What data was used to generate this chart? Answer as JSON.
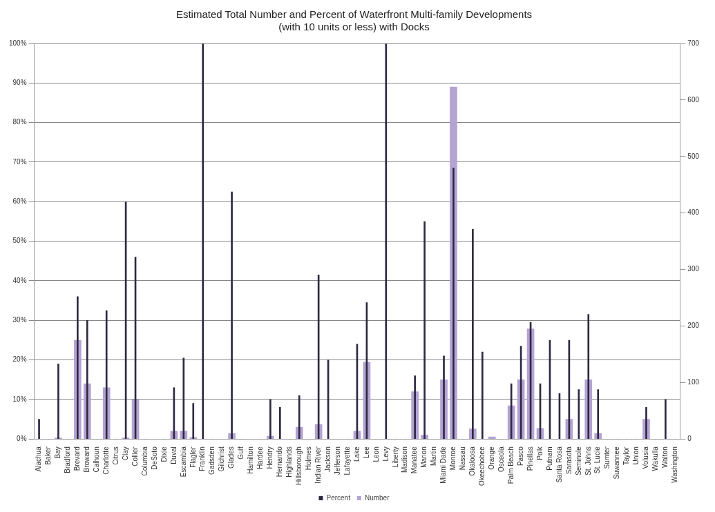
{
  "chart_data": {
    "type": "bar",
    "title": "Estimated Total Number and Percent of Waterfront Multi-family Developments\n(with 10 units or less) with Docks",
    "categories": [
      "Alachua",
      "Baker",
      "Bay",
      "Bradford",
      "Brevard",
      "Broward",
      "Calhoun",
      "Charlotte",
      "Citrus",
      "Clay",
      "Collier",
      "Columbia",
      "DeSoto",
      "Dixie",
      "Duval",
      "Escambia",
      "Flagler",
      "Franklin",
      "Gadsden",
      "Gilchrist",
      "Glades",
      "Gulf",
      "Hamilton",
      "Hardee",
      "Hendry",
      "Hernando",
      "Highlands",
      "Hillsborough",
      "Holmes",
      "Indian River",
      "Jackson",
      "Jefferson",
      "Lafayette",
      "Lake",
      "Lee",
      "Leon",
      "Levy",
      "Liberty",
      "Madison",
      "Manatee",
      "Marion",
      "Martin",
      "Miami Dade",
      "Monroe",
      "Nassau",
      "Okaloosa",
      "Okeechobee",
      "Orange",
      "Osceola",
      "Palm Beach",
      "Pasco",
      "Pinellas",
      "Polk",
      "Putnam",
      "Santa Rosa",
      "Sarasota",
      "Seminole",
      "St. Johns",
      "St. Lucie",
      "Sumter",
      "Suwannee",
      "Taylor",
      "Union",
      "Volusia",
      "Wakulla",
      "Walton",
      "Washington"
    ],
    "series": [
      {
        "name": "Number",
        "color": "#b4a3d3",
        "axis": "y2",
        "values": [
          0,
          0,
          2,
          0,
          175,
          98,
          0,
          91,
          0,
          2,
          70,
          0,
          0,
          0,
          14,
          14,
          3,
          0,
          0,
          0,
          10,
          0,
          0,
          0,
          5,
          0,
          0,
          21,
          0,
          26,
          0,
          0,
          0,
          14,
          136,
          0,
          0,
          0,
          0,
          84,
          7,
          0,
          105,
          623,
          0,
          18,
          0,
          4,
          0,
          59,
          105,
          195,
          19,
          0,
          0,
          35,
          0,
          105,
          10,
          0,
          0,
          0,
          0,
          35,
          0,
          0,
          0
        ]
      },
      {
        "name": "Percent",
        "color": "#2e2842",
        "values": [
          5,
          0,
          19,
          0,
          36,
          30,
          0,
          32.5,
          0,
          60,
          46,
          0,
          0,
          0,
          13,
          20.5,
          9,
          100,
          0,
          0,
          62.5,
          0,
          0,
          0,
          10,
          8,
          0,
          11,
          0,
          41.5,
          20,
          0,
          0,
          24,
          34.5,
          0,
          100,
          0,
          0,
          16,
          55,
          0,
          21,
          68.5,
          0,
          53,
          22,
          0,
          0,
          14,
          23.5,
          29.5,
          14,
          25,
          11.5,
          25,
          12.5,
          31.5,
          12.5,
          0,
          0,
          0,
          0,
          8,
          0,
          10,
          0
        ]
      }
    ],
    "ylim": [
      0,
      100
    ],
    "yticks": [
      {
        "value": 0,
        "label": "0%"
      },
      {
        "value": 10,
        "label": "10%"
      },
      {
        "value": 20,
        "label": "20%"
      },
      {
        "value": 30,
        "label": "30%"
      },
      {
        "value": 40,
        "label": "40%"
      },
      {
        "value": 50,
        "label": "50%"
      },
      {
        "value": 60,
        "label": "60%"
      },
      {
        "value": 70,
        "label": "70%"
      },
      {
        "value": 80,
        "label": "80%"
      },
      {
        "value": 90,
        "label": "90%"
      },
      {
        "value": 100,
        "label": "100%"
      }
    ],
    "y2lim": [
      0,
      700
    ],
    "y2ticks": [
      0,
      100,
      200,
      300,
      400,
      500,
      600,
      700
    ],
    "grid": "y",
    "legend": "bottom"
  }
}
